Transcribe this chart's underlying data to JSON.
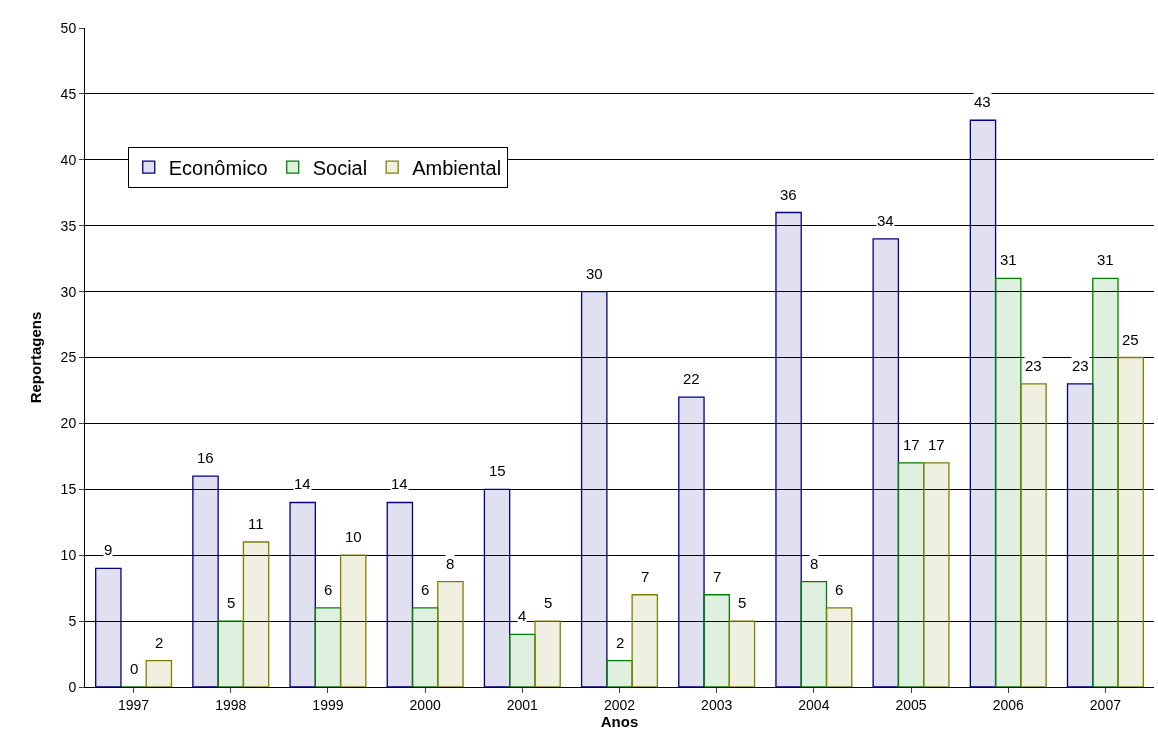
{
  "chart_data": {
    "type": "bar",
    "xlabel": "Anos",
    "ylabel": "Reportagens",
    "categories": [
      "1997",
      "1998",
      "1999",
      "2000",
      "2001",
      "2002",
      "2003",
      "2004",
      "2005",
      "2006",
      "2007"
    ],
    "series": [
      {
        "name": "Econômico",
        "color": "#000080",
        "values": [
          9,
          16,
          14,
          14,
          15,
          30,
          22,
          36,
          34,
          43,
          23
        ]
      },
      {
        "name": "Social",
        "color": "#008000",
        "values": [
          0,
          5,
          6,
          6,
          4,
          2,
          7,
          8,
          17,
          31,
          31
        ]
      },
      {
        "name": "Ambiental",
        "color": "#808000",
        "values": [
          2,
          11,
          10,
          8,
          5,
          7,
          5,
          6,
          17,
          23,
          25
        ]
      }
    ],
    "ylim": [
      0,
      50
    ],
    "yticks": [
      0,
      5,
      10,
      15,
      20,
      25,
      30,
      35,
      40,
      45,
      50
    ],
    "grid": "y",
    "legend": "top left",
    "data_labels": true
  }
}
